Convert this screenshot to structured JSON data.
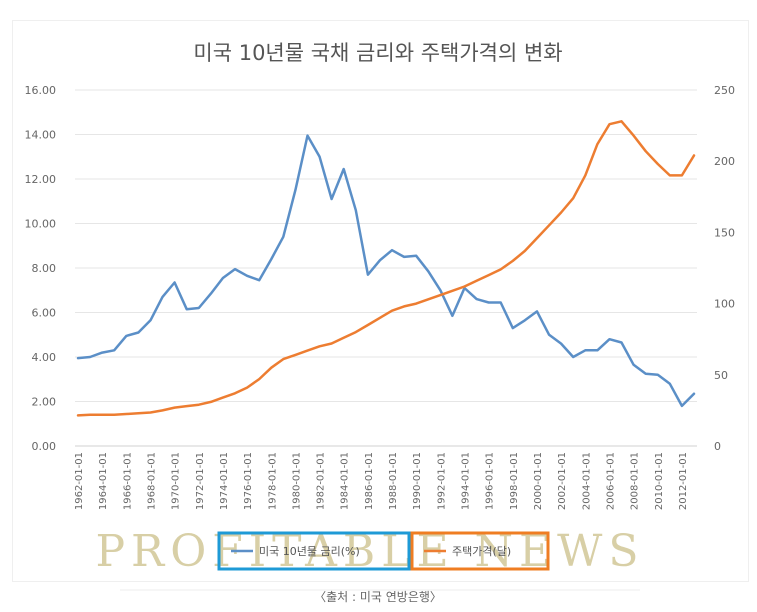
{
  "chart_data": {
    "type": "line",
    "title": "미국 10년물 국채 금리와 주택가격의 변화",
    "x": [
      "1962-01-01",
      "1963-01-01",
      "1964-01-01",
      "1965-01-01",
      "1966-01-01",
      "1967-01-01",
      "1968-01-01",
      "1969-01-01",
      "1970-01-01",
      "1971-01-01",
      "1972-01-01",
      "1973-01-01",
      "1974-01-01",
      "1975-01-01",
      "1976-01-01",
      "1977-01-01",
      "1978-01-01",
      "1979-01-01",
      "1980-01-01",
      "1981-01-01",
      "1982-01-01",
      "1983-01-01",
      "1984-01-01",
      "1985-01-01",
      "1986-01-01",
      "1987-01-01",
      "1988-01-01",
      "1989-01-01",
      "1990-01-01",
      "1991-01-01",
      "1992-01-01",
      "1993-01-01",
      "1994-01-01",
      "1995-01-01",
      "1996-01-01",
      "1997-01-01",
      "1998-01-01",
      "1999-01-01",
      "2000-01-01",
      "2001-01-01",
      "2002-01-01",
      "2003-01-01",
      "2004-01-01",
      "2005-01-01",
      "2006-01-01",
      "2007-01-01",
      "2008-01-01",
      "2009-01-01",
      "2010-01-01",
      "2011-01-01",
      "2012-01-01",
      "2013-01-01"
    ],
    "x_tick_labels": [
      "1962-01-01",
      "1964-01-01",
      "1966-01-01",
      "1968-01-01",
      "1970-01-01",
      "1972-01-01",
      "1974-01-01",
      "1976-01-01",
      "1978-01-01",
      "1980-01-01",
      "1982-01-01",
      "1984-01-01",
      "1986-01-01",
      "1988-01-01",
      "1990-01-01",
      "1992-01-01",
      "1994-01-01",
      "1996-01-01",
      "1998-01-01",
      "2000-01-01",
      "2002-01-01",
      "2004-01-01",
      "2006-01-01",
      "2008-01-01",
      "2010-01-01",
      "2012-01-01"
    ],
    "y_left_ticks": [
      "0.00",
      "2.00",
      "4.00",
      "6.00",
      "8.00",
      "10.00",
      "12.00",
      "14.00",
      "16.00"
    ],
    "y_right_ticks": [
      "0",
      "50",
      "100",
      "150",
      "200",
      "250"
    ],
    "ylim_left": [
      0,
      16
    ],
    "ylim_right": [
      0,
      250
    ],
    "grid": true,
    "legend_position": "bottom",
    "series": [
      {
        "name": "미국 10년물 금리(%)",
        "axis": "left",
        "color": "#5b8fc7",
        "values": [
          3.95,
          4.0,
          4.2,
          4.3,
          4.95,
          5.1,
          5.65,
          6.7,
          7.35,
          6.15,
          6.2,
          6.85,
          7.55,
          7.95,
          7.65,
          7.45,
          8.4,
          9.4,
          11.5,
          13.95,
          13.0,
          11.1,
          12.45,
          10.6,
          7.7,
          8.35,
          8.8,
          8.5,
          8.55,
          7.85,
          7.0,
          5.85,
          7.1,
          6.6,
          6.45,
          6.45,
          5.3,
          5.65,
          6.05,
          5.0,
          4.6,
          4.0,
          4.3,
          4.3,
          4.8,
          4.65,
          3.65,
          3.25,
          3.2,
          2.8,
          1.8,
          2.35
        ]
      },
      {
        "name": "주택가격(달)",
        "axis": "right",
        "color": "#ed7d31",
        "values": [
          21.5,
          22.0,
          22.0,
          22.0,
          22.5,
          23.0,
          23.5,
          25.0,
          27.0,
          28.0,
          29.0,
          31.0,
          34.0,
          37.0,
          41.0,
          47.0,
          55.0,
          61.0,
          64.0,
          67.0,
          70.0,
          72.0,
          76.0,
          80.0,
          85.0,
          90.0,
          95.0,
          98.0,
          100.0,
          103.0,
          106.0,
          109.0,
          112.0,
          116.0,
          120.0,
          124.0,
          130.0,
          137.0,
          146.0,
          155.0,
          164.0,
          174.0,
          190.0,
          212.0,
          226.0,
          228.0,
          218.0,
          207.0,
          198.0,
          190.0,
          190.0,
          204.0
        ]
      }
    ]
  },
  "watermark": "PROFITABLE NEWS",
  "source_note": "〈출처 : 미국 연방은행〉"
}
